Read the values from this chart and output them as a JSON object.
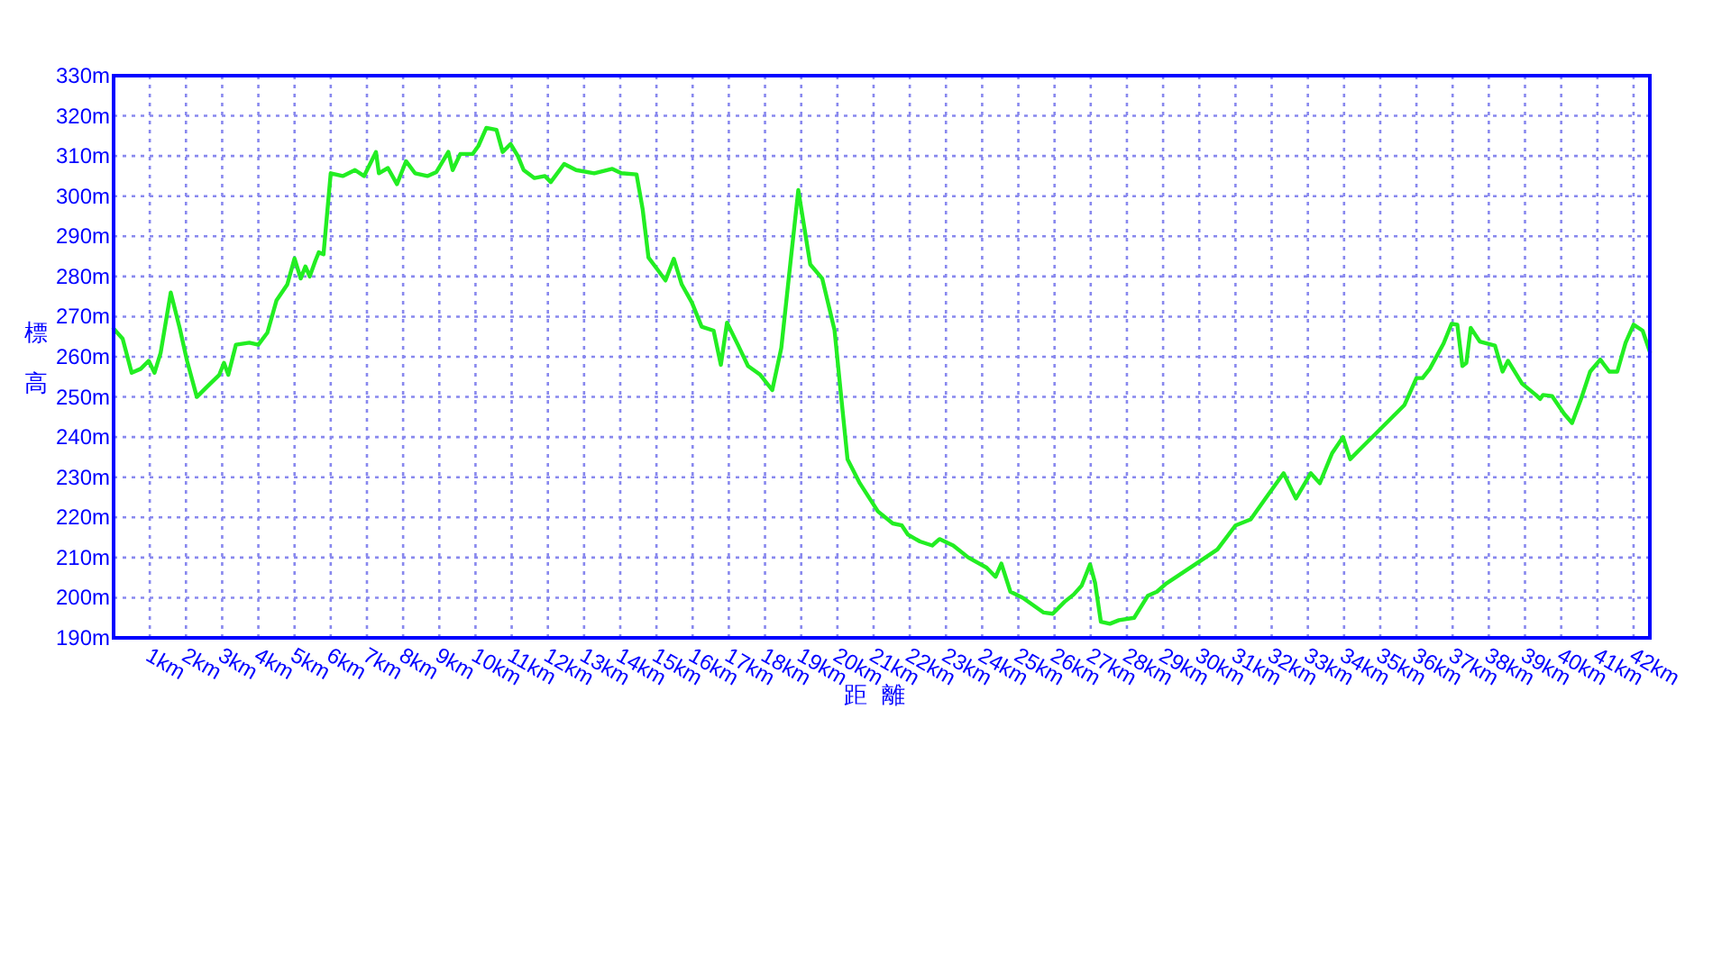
{
  "chart_data": {
    "type": "line",
    "xlabel": "距離",
    "ylabel": "標高",
    "grid": true,
    "xlim": [
      0,
      42.45
    ],
    "ylim": [
      190,
      330
    ],
    "xticks": [
      {
        "value": 1,
        "label": "1km"
      },
      {
        "value": 2,
        "label": "2km"
      },
      {
        "value": 3,
        "label": "3km"
      },
      {
        "value": 4,
        "label": "4km"
      },
      {
        "value": 5,
        "label": "5km"
      },
      {
        "value": 6,
        "label": "6km"
      },
      {
        "value": 7,
        "label": "7km"
      },
      {
        "value": 8,
        "label": "8km"
      },
      {
        "value": 9,
        "label": "9km"
      },
      {
        "value": 10,
        "label": "10km"
      },
      {
        "value": 11,
        "label": "11km"
      },
      {
        "value": 12,
        "label": "12km"
      },
      {
        "value": 13,
        "label": "13km"
      },
      {
        "value": 14,
        "label": "14km"
      },
      {
        "value": 15,
        "label": "15km"
      },
      {
        "value": 16,
        "label": "16km"
      },
      {
        "value": 17,
        "label": "17km"
      },
      {
        "value": 18,
        "label": "18km"
      },
      {
        "value": 19,
        "label": "19km"
      },
      {
        "value": 20,
        "label": "20km"
      },
      {
        "value": 21,
        "label": "21km"
      },
      {
        "value": 22,
        "label": "22km"
      },
      {
        "value": 23,
        "label": "23km"
      },
      {
        "value": 24,
        "label": "24km"
      },
      {
        "value": 25,
        "label": "25km"
      },
      {
        "value": 26,
        "label": "26km"
      },
      {
        "value": 27,
        "label": "27km"
      },
      {
        "value": 28,
        "label": "28km"
      },
      {
        "value": 29,
        "label": "29km"
      },
      {
        "value": 30,
        "label": "30km"
      },
      {
        "value": 31,
        "label": "31km"
      },
      {
        "value": 32,
        "label": "32km"
      },
      {
        "value": 33,
        "label": "33km"
      },
      {
        "value": 34,
        "label": "34km"
      },
      {
        "value": 35,
        "label": "35km"
      },
      {
        "value": 36,
        "label": "36km"
      },
      {
        "value": 37,
        "label": "37km"
      },
      {
        "value": 38,
        "label": "38km"
      },
      {
        "value": 39,
        "label": "39km"
      },
      {
        "value": 40,
        "label": "40km"
      },
      {
        "value": 41,
        "label": "41km"
      },
      {
        "value": 42,
        "label": "42km"
      }
    ],
    "yticks": [
      {
        "value": 190,
        "label": "190m"
      },
      {
        "value": 200,
        "label": "200m"
      },
      {
        "value": 210,
        "label": "210m"
      },
      {
        "value": 220,
        "label": "220m"
      },
      {
        "value": 230,
        "label": "230m"
      },
      {
        "value": 240,
        "label": "240m"
      },
      {
        "value": 250,
        "label": "250m"
      },
      {
        "value": 260,
        "label": "260m"
      },
      {
        "value": 270,
        "label": "270m"
      },
      {
        "value": 280,
        "label": "280m"
      },
      {
        "value": 290,
        "label": "290m"
      },
      {
        "value": 300,
        "label": "300m"
      },
      {
        "value": 310,
        "label": "310m"
      },
      {
        "value": 320,
        "label": "320m"
      },
      {
        "value": 330,
        "label": "330m"
      }
    ],
    "x": [
      0,
      0.25,
      0.5,
      0.75,
      0.97,
      1.13,
      1.3,
      1.58,
      1.83,
      2.03,
      2.3,
      2.58,
      2.92,
      3.05,
      3.17,
      3.38,
      3.75,
      4.0,
      4.25,
      4.5,
      4.8,
      5.0,
      5.17,
      5.3,
      5.42,
      5.58,
      5.67,
      5.8,
      6.0,
      6.33,
      6.67,
      6.92,
      7.25,
      7.33,
      7.58,
      7.83,
      8.08,
      8.33,
      8.67,
      8.92,
      9.25,
      9.37,
      9.58,
      9.92,
      10.08,
      10.3,
      10.58,
      10.75,
      10.97,
      11.17,
      11.33,
      11.63,
      11.92,
      12.08,
      12.45,
      12.78,
      13.28,
      13.78,
      14.03,
      14.45,
      14.62,
      14.78,
      15.03,
      15.25,
      15.48,
      15.7,
      15.98,
      16.25,
      16.58,
      16.78,
      16.95,
      17.25,
      17.53,
      17.87,
      18.2,
      18.45,
      18.7,
      18.92,
      19.25,
      19.58,
      19.92,
      20.12,
      20.28,
      20.62,
      21.12,
      21.53,
      21.78,
      21.95,
      22.28,
      22.62,
      22.82,
      23.2,
      23.62,
      24.12,
      24.37,
      24.53,
      24.78,
      25.12,
      25.7,
      25.95,
      26.28,
      26.53,
      26.75,
      26.98,
      27.12,
      27.28,
      27.53,
      27.78,
      28.2,
      28.58,
      28.83,
      29.08,
      29.42,
      30,
      30.5,
      31,
      31.42,
      31.83,
      32.33,
      32.67,
      33.08,
      33.33,
      33.67,
      33.97,
      34.17,
      34.5,
      35.17,
      35.67,
      36,
      36.17,
      36.37,
      36.75,
      36.97,
      37.13,
      37.27,
      37.38,
      37.5,
      37.75,
      38.17,
      38.38,
      38.53,
      38.92,
      39.3,
      39.42,
      39.5,
      39.75,
      40.08,
      40.3,
      40.55,
      40.8,
      41.08,
      41.33,
      41.55,
      41.78,
      42,
      42.25,
      42.45
    ],
    "series": [
      {
        "color": "#22ee22",
        "values": [
          267,
          264.5,
          256,
          257,
          259,
          256,
          261,
          276,
          267,
          259,
          250,
          252.5,
          255.5,
          258.5,
          255.5,
          263,
          263.5,
          263,
          266,
          274,
          278,
          284.5,
          279.5,
          282.5,
          280,
          284,
          286,
          285.5,
          305.7,
          305,
          306.5,
          305,
          311,
          305.7,
          307,
          303,
          308.7,
          305.7,
          305,
          306,
          311,
          306.5,
          310.5,
          310.5,
          312.5,
          317,
          316.5,
          311,
          313,
          310,
          306.5,
          304.5,
          305,
          303.5,
          308,
          306.5,
          305.7,
          306.8,
          305.7,
          305.4,
          296.7,
          284.7,
          281.7,
          279,
          284.4,
          278,
          273.5,
          267.5,
          266.5,
          258,
          268.5,
          263,
          257.7,
          255.5,
          251.7,
          262.2,
          283.2,
          301.5,
          283,
          279.5,
          266.7,
          248.7,
          234.5,
          228.5,
          221.5,
          218.5,
          218,
          215.7,
          214,
          213,
          214.6,
          213,
          210,
          207.5,
          205.2,
          208.5,
          201.5,
          200,
          196.3,
          196,
          199,
          200.8,
          203,
          208.3,
          203.7,
          194,
          193.5,
          194.4,
          195,
          200.5,
          201.5,
          203.5,
          205.5,
          209,
          212,
          218,
          219.5,
          224.7,
          231,
          224.7,
          231,
          228.5,
          236,
          240,
          234.5,
          237.5,
          243.5,
          248,
          254.7,
          254.7,
          257,
          263.3,
          268.2,
          268,
          257.7,
          258.5,
          267.2,
          263.8,
          262.8,
          256.3,
          259,
          253.3,
          250.5,
          249.5,
          250.5,
          250.2,
          245.8,
          243.5,
          249.5,
          256.3,
          259.3,
          256.3,
          256.3,
          263.5,
          268,
          266.5,
          261.2
        ]
      }
    ]
  }
}
